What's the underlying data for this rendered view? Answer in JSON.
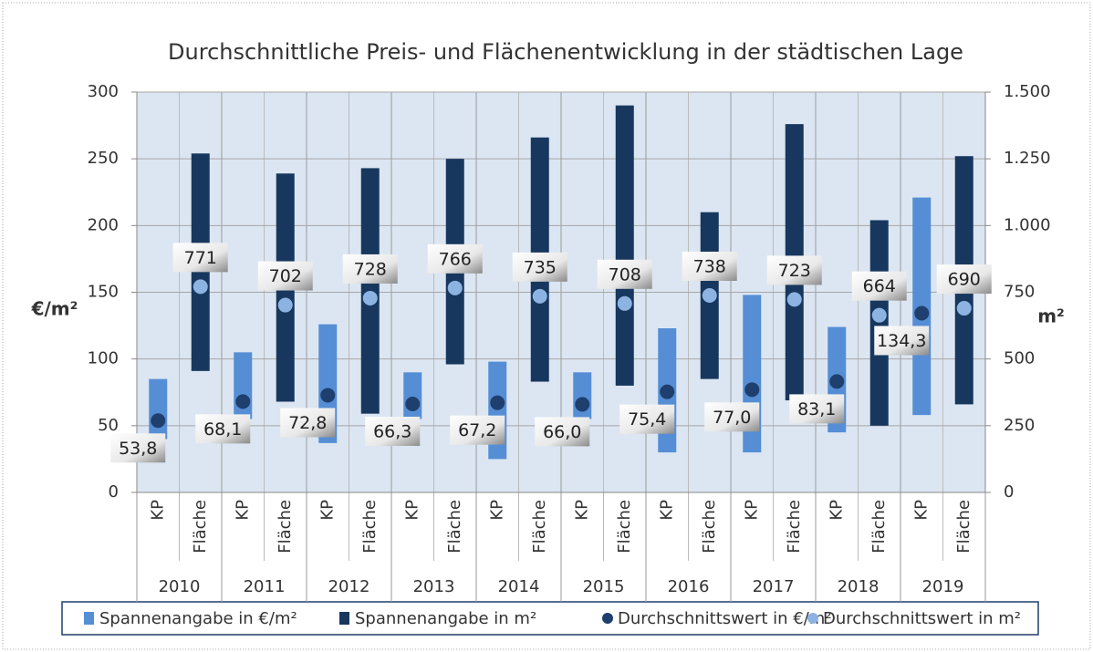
{
  "chart_data": {
    "type": "floating_bar",
    "title": "Durchschnittliche Preis- und Flächenentwicklung in der städtischen Lage",
    "ylabel": "€/m²",
    "y2label": "m²",
    "groups": [
      "2010",
      "2011",
      "2012",
      "2013",
      "2014",
      "2015",
      "2016",
      "2017",
      "2018",
      "2019"
    ],
    "subcategories": [
      "KP",
      "Fläche"
    ],
    "ylim": [
      0,
      300
    ],
    "yticks": [
      0,
      50,
      100,
      150,
      200,
      250,
      300
    ],
    "y2lim": [
      0,
      1500
    ],
    "y2ticks": [
      0,
      250,
      500,
      750,
      {
        "value": 1000,
        "label": "1.000"
      },
      {
        "value": 1250,
        "label": "1.250"
      },
      {
        "value": 1500,
        "label": "1.500"
      }
    ],
    "grid": true,
    "series": [
      {
        "name": "Spannenangabe in €/m²",
        "color": "#558ed5",
        "kind": "range",
        "slot": 0,
        "low": [
          40,
          55,
          37,
          55,
          25,
          55,
          30,
          30,
          45,
          58
        ],
        "high": [
          85,
          105,
          126,
          90,
          98,
          90,
          123,
          148,
          124,
          221
        ]
      },
      {
        "name": "Spannenangabe in m²",
        "color": "#17375e",
        "kind": "range",
        "slot": 1,
        "axis": "y2",
        "low": [
          455,
          340,
          295,
          480,
          415,
          400,
          425,
          345,
          250,
          330
        ],
        "high": [
          1270,
          1195,
          1215,
          1250,
          1330,
          1450,
          1050,
          1380,
          1020,
          1260
        ]
      },
      {
        "name": "Durchschnittswert in €/m²",
        "color": "#1f3f6e",
        "kind": "point",
        "slot": 0,
        "values": [
          53.8,
          68.1,
          72.8,
          66.3,
          67.2,
          66.0,
          75.4,
          77.0,
          83.1,
          134.3
        ],
        "value_labels": [
          "53,8",
          "68,1",
          "72,8",
          "66,3",
          "67,2",
          "66,0",
          "75,4",
          "77,0",
          "83,1",
          "134,3"
        ]
      },
      {
        "name": "Durchschnittswert in m²",
        "color": "#8db3e2",
        "kind": "point",
        "slot": 1,
        "axis": "y2",
        "values": [
          771,
          702,
          728,
          766,
          735,
          708,
          738,
          723,
          664,
          690
        ]
      }
    ]
  }
}
